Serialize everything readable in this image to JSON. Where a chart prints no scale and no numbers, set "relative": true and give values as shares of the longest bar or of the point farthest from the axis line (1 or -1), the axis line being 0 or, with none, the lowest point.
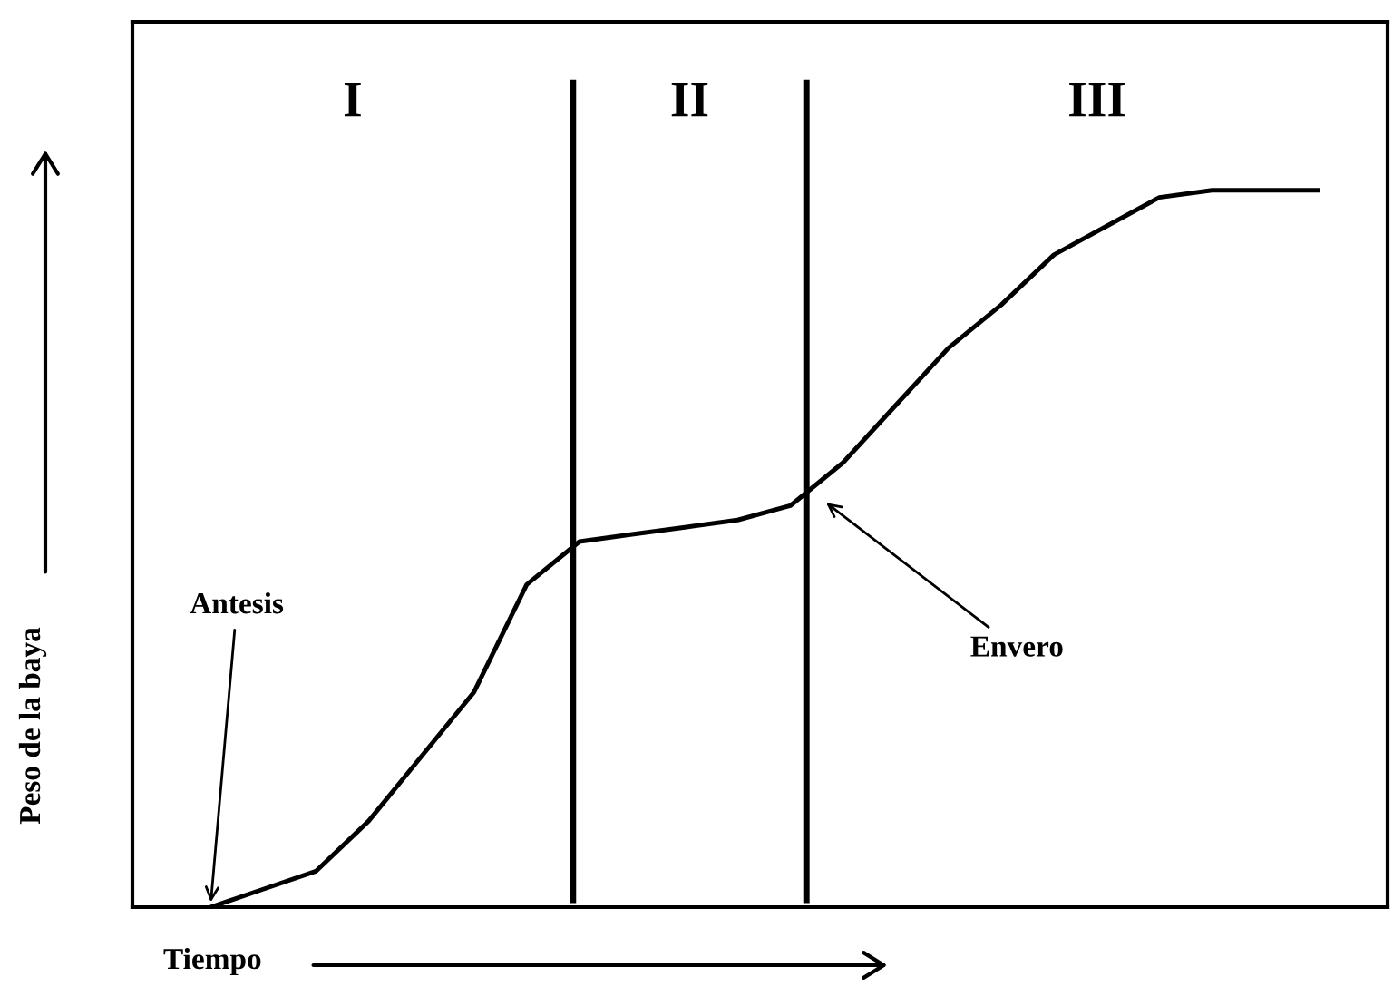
{
  "chart_data": {
    "type": "line",
    "relative": true,
    "xlabel": "Tiempo",
    "ylabel": "Peso de la baya",
    "categories": [
      null,
      null,
      null,
      null,
      null,
      null,
      null,
      null,
      null,
      null,
      null,
      null,
      null,
      null,
      null,
      null,
      null,
      null,
      null,
      null,
      null,
      null
    ],
    "series": [
      {
        "color": "#000000",
        "values": [
          0,
          0.025,
          0.05,
          0.12,
          0.21,
          0.3,
          0.45,
          0.51,
          0.52,
          0.53,
          0.54,
          0.56,
          0.62,
          0.7,
          0.78,
          0.84,
          0.91,
          0.95,
          0.99,
          1,
          1,
          1
        ]
      }
    ],
    "annotations": [
      "I",
      "II",
      "III",
      "Antesis",
      "Envero"
    ],
    "grid": false,
    "legend": false,
    "marker": "none",
    "line_style": "solid"
  }
}
